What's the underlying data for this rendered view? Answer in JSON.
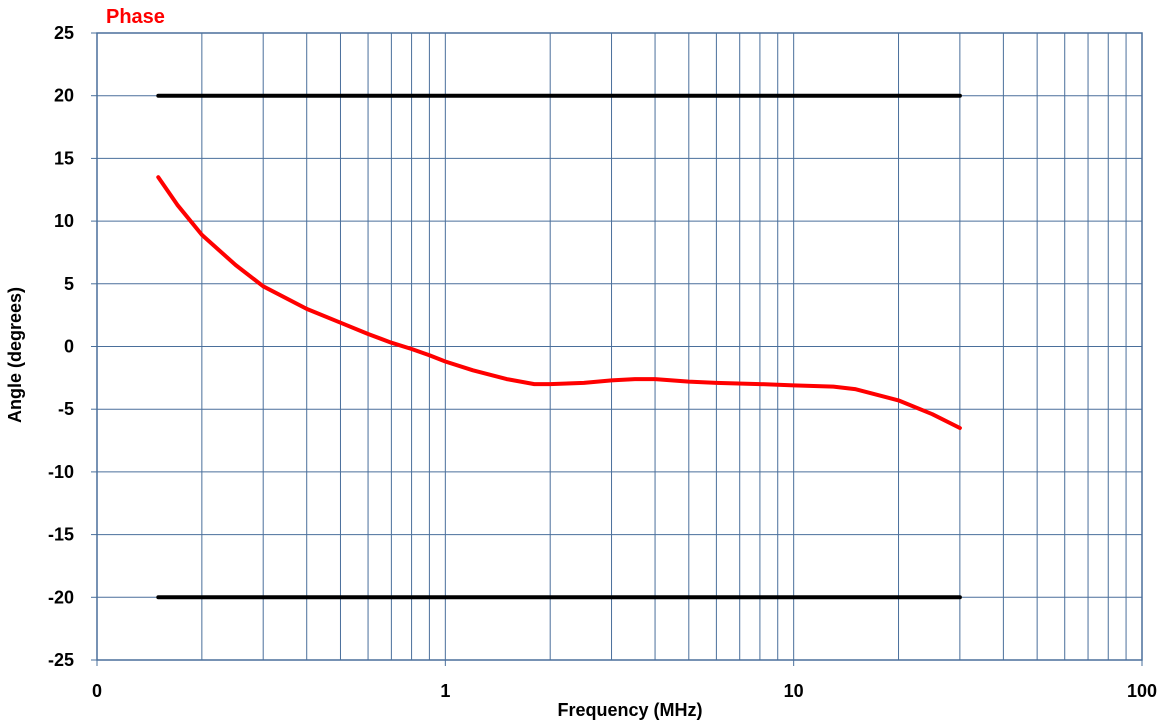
{
  "chart_data": {
    "type": "line",
    "title": "Phase",
    "title_color": "#ff0000",
    "xlabel": "Frequency (MHz)",
    "ylabel": "Angle (degrees)",
    "xscale": "log",
    "xlim": [
      0.1,
      100
    ],
    "ylim": [
      -25,
      25
    ],
    "x_tick_labels": [
      "0",
      "1",
      "10",
      "100"
    ],
    "y_ticks": [
      25,
      20,
      15,
      10,
      5,
      0,
      -5,
      -10,
      -15,
      -20,
      -25
    ],
    "grid": true,
    "grid_color": "#4a6f9b",
    "series": [
      {
        "color": "#ff0000",
        "x": [
          0.15,
          0.17,
          0.2,
          0.25,
          0.3,
          0.4,
          0.5,
          0.6,
          0.7,
          0.8,
          0.9,
          1.0,
          1.2,
          1.5,
          1.8,
          2.0,
          2.5,
          3.0,
          3.5,
          4.0,
          5.0,
          6.0,
          8.0,
          10.0,
          13.0,
          15.0,
          20.0,
          25.0,
          30.0
        ],
        "y": [
          13.5,
          11.3,
          8.9,
          6.5,
          4.8,
          3.0,
          1.9,
          1.0,
          0.3,
          -0.2,
          -0.7,
          -1.2,
          -1.9,
          -2.6,
          -3.0,
          -3.0,
          -2.9,
          -2.7,
          -2.6,
          -2.6,
          -2.8,
          -2.9,
          -3.0,
          -3.1,
          -3.2,
          -3.4,
          -4.3,
          -5.4,
          -6.5
        ]
      },
      {
        "color": "#000000",
        "x": [
          0.15,
          30
        ],
        "y": [
          20,
          20
        ]
      },
      {
        "color": "#000000",
        "x": [
          0.15,
          30
        ],
        "y": [
          -20,
          -20
        ]
      }
    ]
  }
}
